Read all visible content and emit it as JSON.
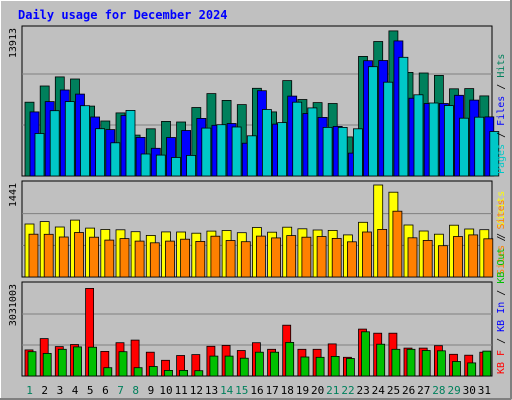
{
  "chart_data": {
    "type": "bar",
    "title": "Daily usage for December 2024",
    "categories": [
      "1",
      "2",
      "3",
      "4",
      "5",
      "6",
      "7",
      "8",
      "9",
      "10",
      "11",
      "12",
      "13",
      "14",
      "15",
      "16",
      "17",
      "18",
      "19",
      "20",
      "21",
      "22",
      "23",
      "24",
      "25",
      "26",
      "27",
      "28",
      "29",
      "30",
      "31"
    ],
    "weekend_days": [
      "1",
      "7",
      "8",
      "14",
      "15",
      "21",
      "22",
      "28",
      "29"
    ],
    "panels": [
      {
        "name": "hits-files-pages",
        "max_label": "13913",
        "ylim": [
          0,
          14000
        ],
        "side_labels": [
          {
            "text": "Pages",
            "color": "#00C8C8"
          },
          {
            "text": " / ",
            "color": "#000000"
          },
          {
            "text": "Files",
            "color": "#0000FF"
          },
          {
            "text": " / ",
            "color": "#000000"
          },
          {
            "text": "Hits",
            "color": "#00805C"
          }
        ],
        "series": [
          {
            "name": "Hits",
            "color": "#00805C",
            "values": [
              7080,
              8630,
              9500,
              9300,
              6700,
              5270,
              6050,
              3920,
              4530,
              5240,
              5180,
              6570,
              7900,
              7250,
              6850,
              8410,
              6150,
              9150,
              7340,
              7040,
              6950,
              3750,
              11470,
              12900,
              13913,
              9930,
              9880,
              9650,
              8360,
              8380,
              7680
            ]
          },
          {
            "name": "Files",
            "color": "#0000FF",
            "values": [
              6150,
              7130,
              8250,
              7850,
              5660,
              4450,
              5800,
              3700,
              2660,
              3690,
              4360,
              5520,
              4860,
              5030,
              3150,
              8180,
              4980,
              7660,
              5990,
              5620,
              4760,
              2200,
              11060,
              11080,
              12950,
              7460,
              6950,
              6950,
              7740,
              7280,
              5670
            ]
          },
          {
            "name": "Pages",
            "color": "#00C8C8",
            "values": [
              4080,
              6260,
              7130,
              6740,
              4540,
              3180,
              6290,
              2110,
              2000,
              1770,
              1980,
              4590,
              4920,
              4700,
              3850,
              6380,
              5120,
              7080,
              6530,
              4660,
              4660,
              4530,
              10480,
              8990,
              11380,
              7790,
              7000,
              6750,
              5540,
              5640,
              4270
            ]
          }
        ]
      },
      {
        "name": "visits-sites",
        "max_label": "1441",
        "ylim": [
          0,
          1441
        ],
        "side_labels": [
          {
            "text": "Sites",
            "color": "#FF8000"
          },
          {
            "text": " / ",
            "color": "#000000"
          },
          {
            "text": "Visits",
            "color": "#FFFF00"
          }
        ],
        "series": [
          {
            "name": "Visits",
            "color": "#FFFF00",
            "values": [
              830,
              868,
              783,
              892,
              766,
              744,
              739,
              710,
              651,
              706,
              705,
              686,
              719,
              729,
              694,
              776,
              702,
              780,
              755,
              736,
              730,
              660,
              856,
              1441,
              1328,
              815,
              720,
              670,
              811,
              752,
              741
            ]
          },
          {
            "name": "Sites",
            "color": "#FF8000",
            "values": [
              670,
              669,
              627,
              697,
              624,
              578,
              602,
              563,
              536,
              562,
              592,
              558,
              639,
              572,
              553,
              640,
              613,
              649,
              624,
              634,
              604,
              551,
              705,
              745,
              1030,
              614,
              573,
              490,
              634,
              660,
              599
            ]
          }
        ]
      },
      {
        "name": "kb-in-out",
        "max_label": "3031003",
        "ylim": [
          0,
          3031003
        ],
        "side_labels": [
          {
            "text": "KB F",
            "color": "#FF0000"
          },
          {
            "text": " / ",
            "color": "#000000"
          },
          {
            "text": "KB In",
            "color": "#0000FF"
          },
          {
            "text": " / ",
            "color": "#000000"
          },
          {
            "text": "KB Out",
            "color": "#00C000"
          },
          {
            "text": " / ",
            "color": "#000000"
          },
          {
            "text": "Sites",
            "color": "#FF8000"
          }
        ],
        "series": [
          {
            "name": "KB F",
            "color": "#FF0000",
            "values": [
              880000,
              1260000,
              990000,
              1060000,
              2950000,
              830000,
              1120000,
              1210000,
              800000,
              530000,
              690000,
              720000,
              1000000,
              1030000,
              860000,
              1120000,
              900000,
              1710000,
              900000,
              900000,
              1080000,
              630000,
              1580000,
              1440000,
              1440000,
              940000,
              940000,
              1020000,
              730000,
              700000,
              800000
            ]
          },
          {
            "name": "KB Out",
            "color": "#00C000",
            "values": [
              820000,
              760000,
              900000,
              980000,
              970000,
              280000,
              820000,
              280000,
              320000,
              190000,
              190000,
              180000,
              670000,
              670000,
              600000,
              800000,
              800000,
              1130000,
              640000,
              630000,
              660000,
              590000,
              1490000,
              1070000,
              900000,
              900000,
              860000,
              850000,
              490000,
              440000,
              840000
            ]
          }
        ]
      }
    ]
  },
  "colors": {
    "background": "#C0C0C0",
    "plot_background": "#C0C0C0",
    "title_color": "#0000FF",
    "grid": "#808080",
    "weekend_label": "#00805C",
    "weekday_label": "#000000"
  }
}
